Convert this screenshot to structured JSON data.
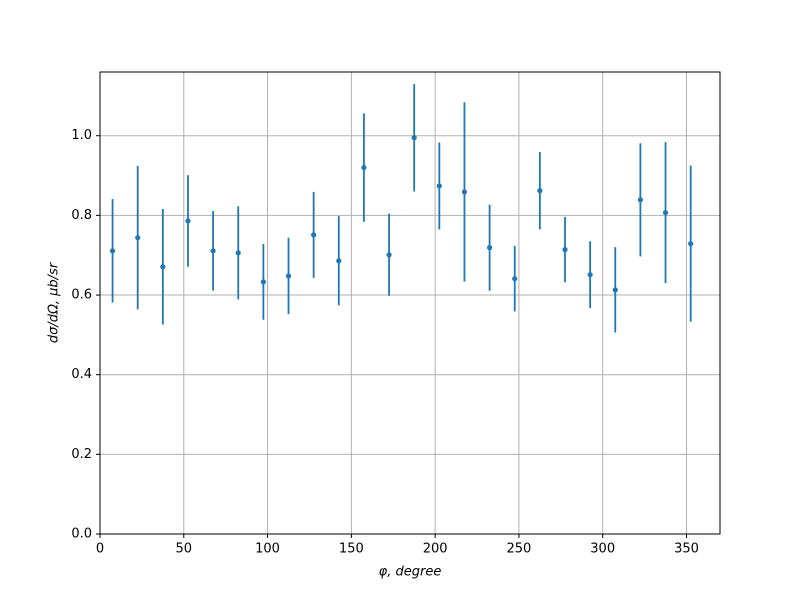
{
  "chart_data": {
    "type": "errorbar",
    "xlabel": "φ, degree",
    "ylabel": "dσ/dΩ, μb/sr",
    "x": [
      7.5,
      22.5,
      37.5,
      52.5,
      67.5,
      82.5,
      97.5,
      112.5,
      127.5,
      142.5,
      157.5,
      172.5,
      187.5,
      202.5,
      217.5,
      232.5,
      247.5,
      262.5,
      277.5,
      292.5,
      307.5,
      322.5,
      337.5,
      352.5
    ],
    "values": [
      0.711,
      0.744,
      0.671,
      0.786,
      0.711,
      0.706,
      0.633,
      0.648,
      0.751,
      0.686,
      0.92,
      0.701,
      0.995,
      0.874,
      0.859,
      0.719,
      0.641,
      0.862,
      0.714,
      0.651,
      0.613,
      0.839,
      0.807,
      0.729
    ],
    "errors": [
      0.13,
      0.18,
      0.145,
      0.115,
      0.1,
      0.117,
      0.095,
      0.096,
      0.108,
      0.112,
      0.136,
      0.103,
      0.135,
      0.109,
      0.225,
      0.108,
      0.082,
      0.097,
      0.082,
      0.084,
      0.107,
      0.142,
      0.177,
      0.196
    ],
    "color": "#1f77b4",
    "xlim": [
      0,
      370
    ],
    "ylim": [
      0,
      1.16
    ],
    "xticks": [
      0,
      50,
      100,
      150,
      200,
      250,
      300,
      350
    ],
    "yticks": [
      {
        "value": 0,
        "label": "0.0"
      },
      {
        "value": 0.2,
        "label": "0.2"
      },
      {
        "value": 0.4,
        "label": "0.4"
      },
      {
        "value": 0.6,
        "label": "0.6"
      },
      {
        "value": 0.8,
        "label": "0.8"
      },
      {
        "value": 1.0,
        "label": "1.0"
      }
    ],
    "grid": true
  }
}
